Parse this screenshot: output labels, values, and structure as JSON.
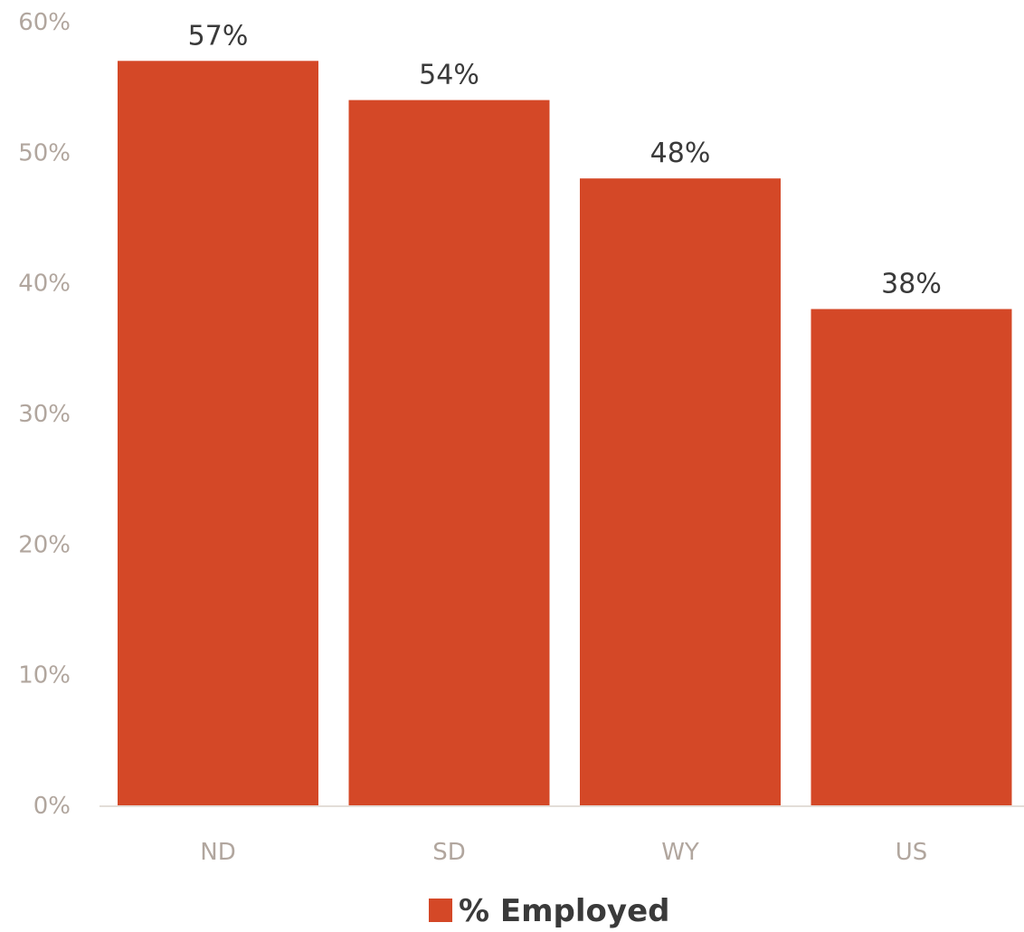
{
  "chart_data": {
    "type": "bar",
    "categories": [
      "ND",
      "SD",
      "WY",
      "US"
    ],
    "series": [
      {
        "name": "% Employed",
        "values": [
          57,
          54,
          48,
          38
        ],
        "data_labels": [
          "57%",
          "54%",
          "48%",
          "38%"
        ],
        "color": "#d44827"
      }
    ],
    "ylim": [
      0,
      60
    ],
    "yticks": [
      0,
      10,
      20,
      30,
      40,
      50,
      60
    ],
    "ytick_labels": [
      "0%",
      "10%",
      "20%",
      "30%",
      "40%",
      "50%",
      "60%"
    ],
    "grid": false,
    "legend_position": "bottom",
    "title": "",
    "xlabel": "",
    "ylabel": ""
  }
}
